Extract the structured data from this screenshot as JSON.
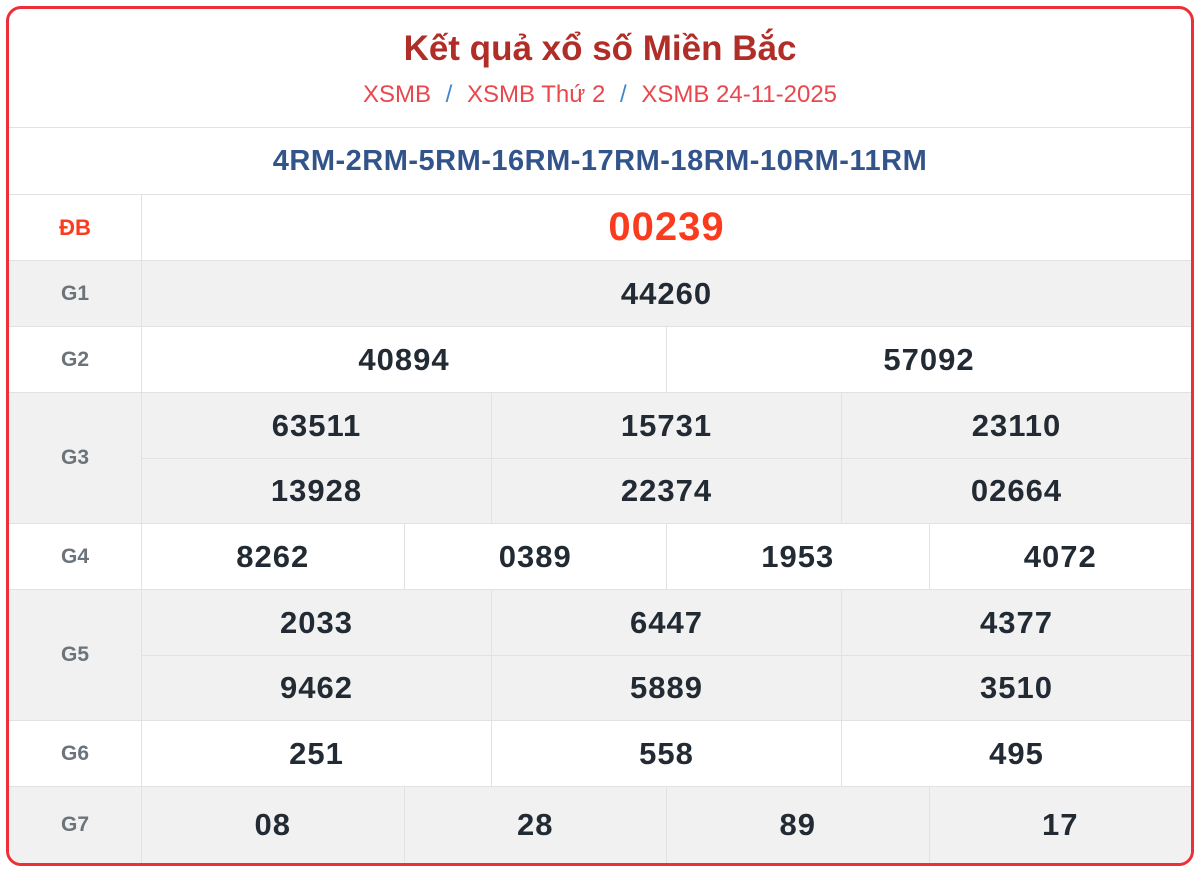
{
  "header": {
    "title": "Kết quả xổ số Miền Bắc",
    "breadcrumb": [
      {
        "label": "XSMB"
      },
      {
        "label": "XSMB Thứ 2"
      },
      {
        "label": "XSMB 24-11-2025"
      }
    ],
    "breadcrumb_separator": "/",
    "code_line": "4RM-2RM-5RM-16RM-17RM-18RM-10RM-11RM"
  },
  "results": {
    "rows": [
      {
        "label": "ĐB",
        "special": true,
        "lines": [
          [
            "00239"
          ]
        ]
      },
      {
        "label": "G1",
        "special": false,
        "lines": [
          [
            "44260"
          ]
        ]
      },
      {
        "label": "G2",
        "special": false,
        "lines": [
          [
            "40894",
            "57092"
          ]
        ]
      },
      {
        "label": "G3",
        "special": false,
        "lines": [
          [
            "63511",
            "15731",
            "23110"
          ],
          [
            "13928",
            "22374",
            "02664"
          ]
        ]
      },
      {
        "label": "G4",
        "special": false,
        "lines": [
          [
            "8262",
            "0389",
            "1953",
            "4072"
          ]
        ]
      },
      {
        "label": "G5",
        "special": false,
        "lines": [
          [
            "2033",
            "6447",
            "4377"
          ],
          [
            "9462",
            "5889",
            "3510"
          ]
        ]
      },
      {
        "label": "G6",
        "special": false,
        "lines": [
          [
            "251",
            "558",
            "495"
          ]
        ]
      },
      {
        "label": "G7",
        "special": false,
        "lines": [
          [
            "08",
            "28",
            "89",
            "17"
          ]
        ]
      }
    ]
  },
  "colors": {
    "card_border": "#ee2e38",
    "title_red": "#b12d27",
    "breadcrumb_red": "#e8474d",
    "breadcrumb_separator_blue": "#3e86cf",
    "code_blue": "#33548a",
    "special_prize_red": "#fb3b1e",
    "number_dark": "#222a33",
    "label_gray": "#6b737b",
    "alt_row_background": "#f1f1f1",
    "grid_line": "#e2e2e2"
  }
}
